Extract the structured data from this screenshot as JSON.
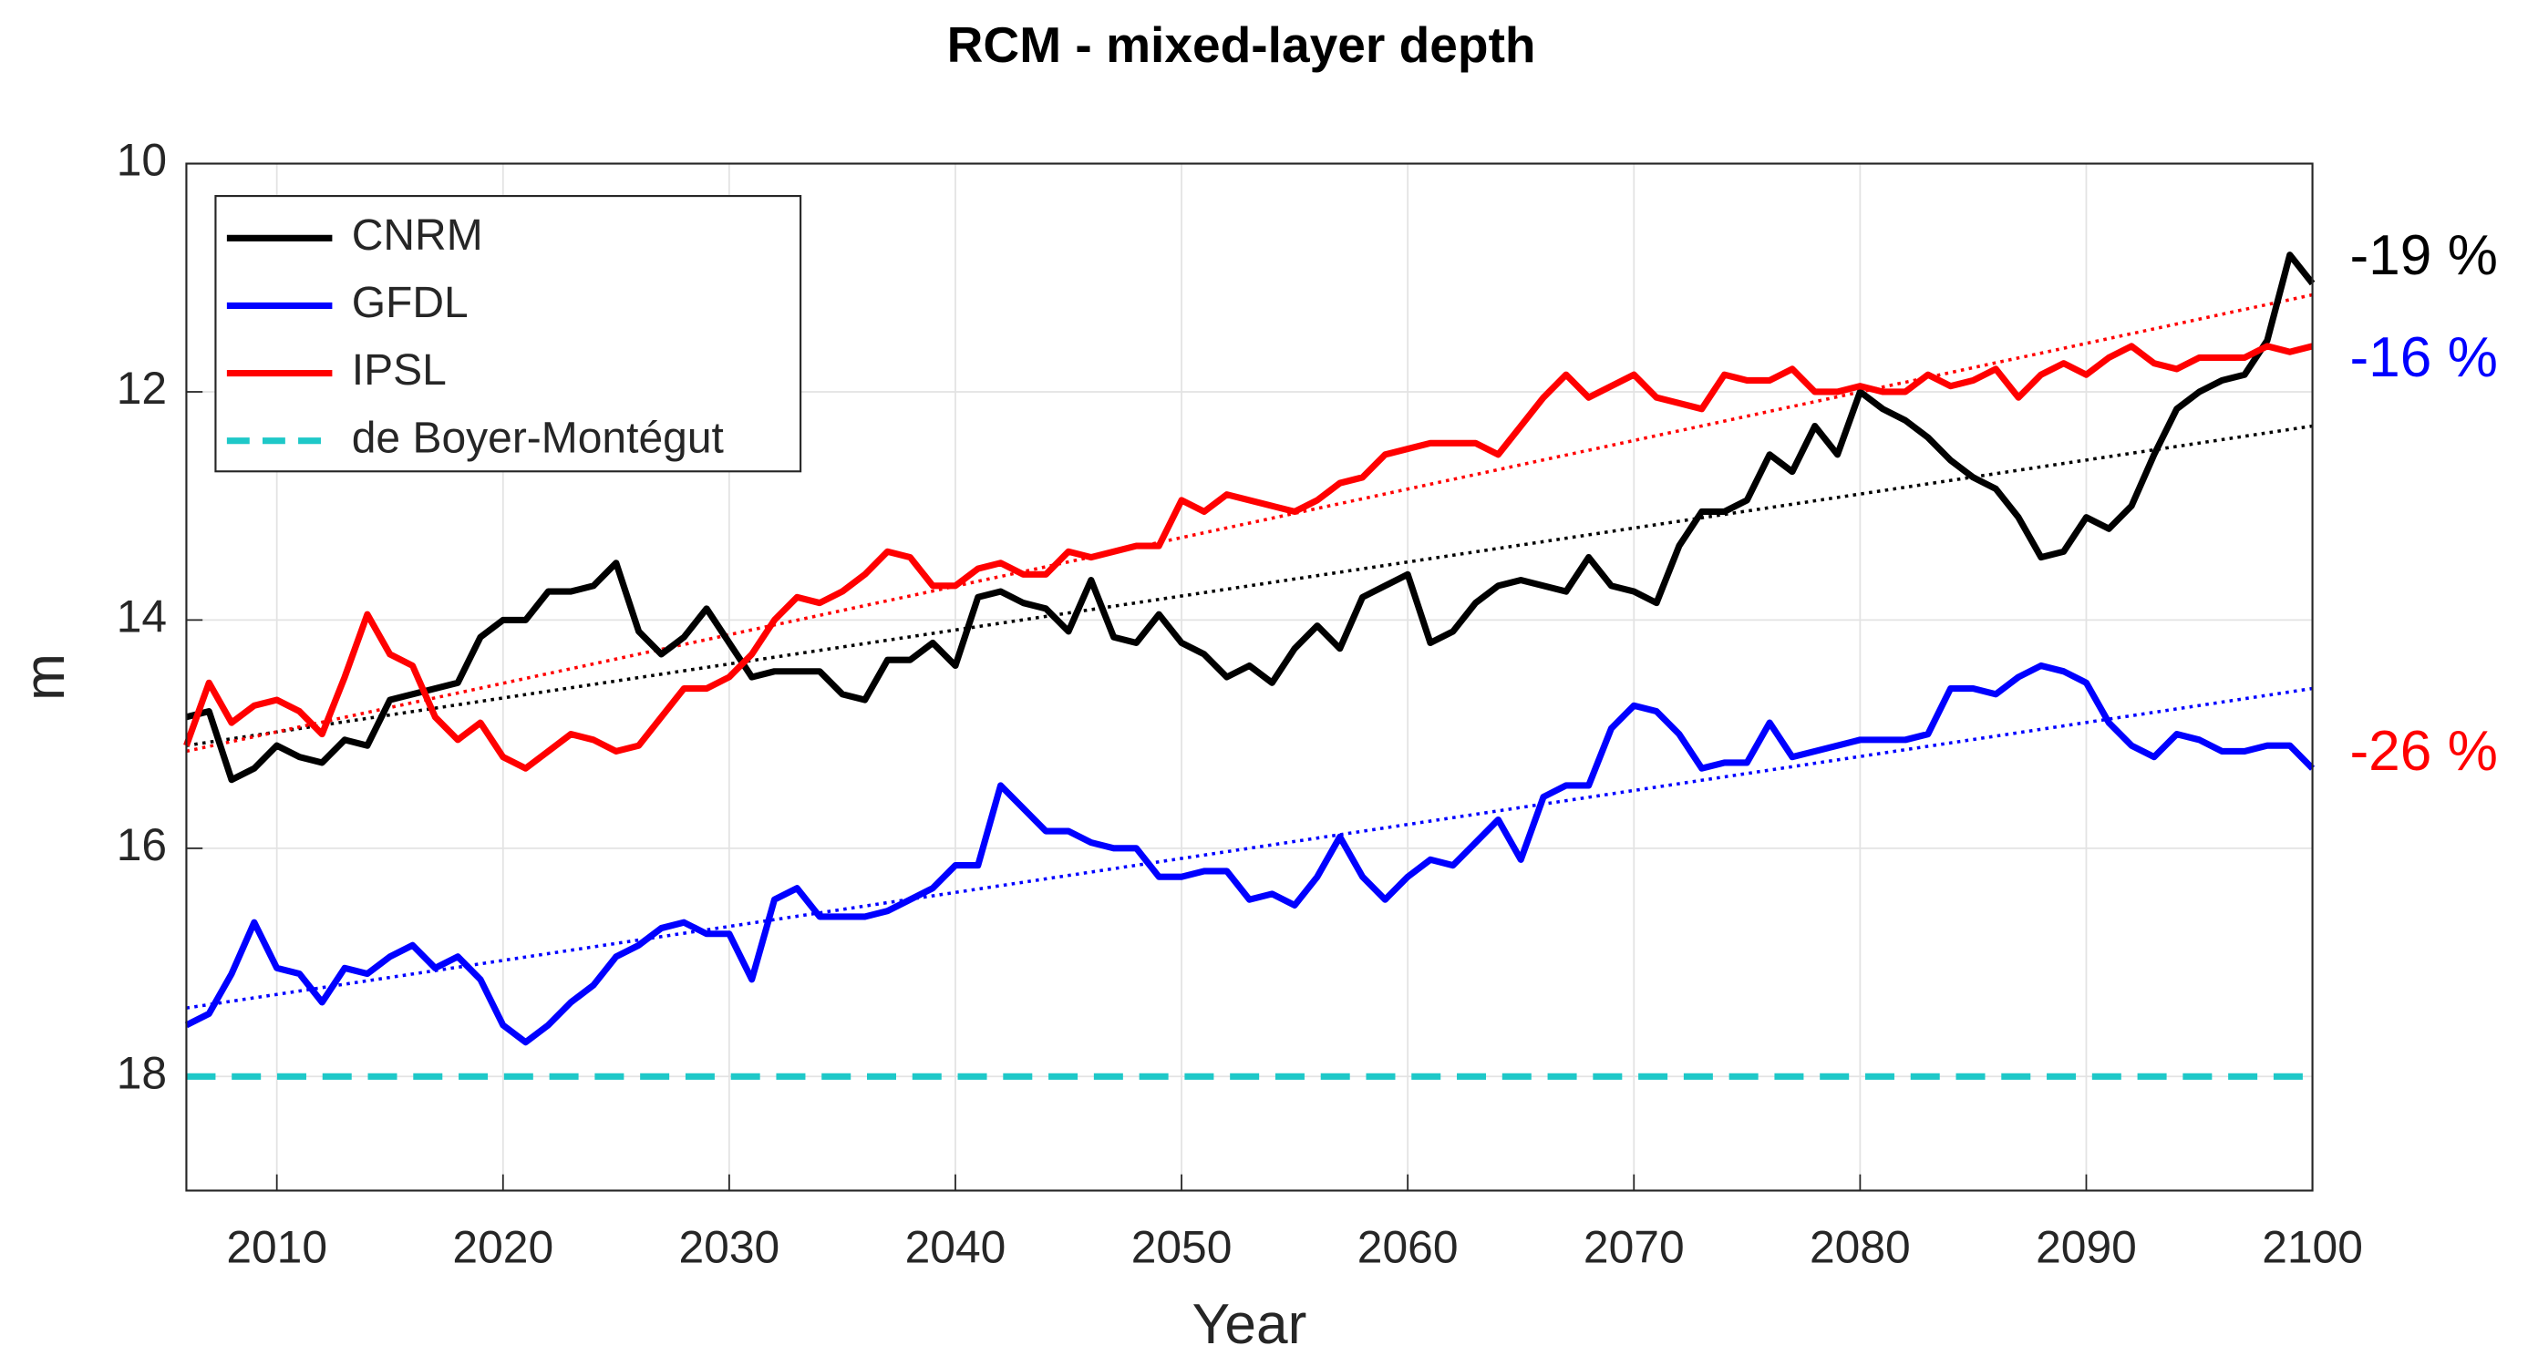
{
  "chart_data": {
    "type": "line",
    "title": "RCM - mixed-layer depth",
    "xlabel": "Year",
    "ylabel": "m",
    "xlim": [
      2006,
      2100
    ],
    "xticks": [
      2010,
      2020,
      2030,
      2040,
      2050,
      2060,
      2070,
      2080,
      2090,
      2100
    ],
    "ylim": [
      10,
      19
    ],
    "yticks": [
      10,
      12,
      14,
      16,
      18
    ],
    "y_reversed": true,
    "grid": true,
    "legend": "upper left",
    "x": [
      2006,
      2007,
      2008,
      2009,
      2010,
      2011,
      2012,
      2013,
      2014,
      2015,
      2016,
      2017,
      2018,
      2019,
      2020,
      2021,
      2022,
      2023,
      2024,
      2025,
      2026,
      2027,
      2028,
      2029,
      2030,
      2031,
      2032,
      2033,
      2034,
      2035,
      2036,
      2037,
      2038,
      2039,
      2040,
      2041,
      2042,
      2043,
      2044,
      2045,
      2046,
      2047,
      2048,
      2049,
      2050,
      2051,
      2052,
      2053,
      2054,
      2055,
      2056,
      2057,
      2058,
      2059,
      2060,
      2061,
      2062,
      2063,
      2064,
      2065,
      2066,
      2067,
      2068,
      2069,
      2070,
      2071,
      2072,
      2073,
      2074,
      2075,
      2076,
      2077,
      2078,
      2079,
      2080,
      2081,
      2082,
      2083,
      2084,
      2085,
      2086,
      2087,
      2088,
      2089,
      2090,
      2091,
      2092,
      2093,
      2094,
      2095,
      2096,
      2097,
      2098,
      2099,
      2100
    ],
    "series": [
      {
        "name": "CNRM",
        "color": "#000000",
        "annotation": "-19 %",
        "trend": [
          15.1,
          12.3
        ],
        "values": [
          14.85,
          14.8,
          15.4,
          15.3,
          15.1,
          15.2,
          15.25,
          15.05,
          15.1,
          14.7,
          14.65,
          14.6,
          14.55,
          14.15,
          14.0,
          14.0,
          13.75,
          13.75,
          13.7,
          13.5,
          14.1,
          14.3,
          14.15,
          13.9,
          14.2,
          14.5,
          14.45,
          14.45,
          14.45,
          14.65,
          14.7,
          14.35,
          14.35,
          14.2,
          14.4,
          13.8,
          13.75,
          13.85,
          13.9,
          14.1,
          13.65,
          14.15,
          14.2,
          13.95,
          14.2,
          14.3,
          14.5,
          14.4,
          14.55,
          14.25,
          14.05,
          14.25,
          13.8,
          13.7,
          13.6,
          14.2,
          14.1,
          13.85,
          13.7,
          13.65,
          13.7,
          13.75,
          13.45,
          13.7,
          13.75,
          13.85,
          13.35,
          13.05,
          13.05,
          12.95,
          12.55,
          12.7,
          12.3,
          12.55,
          12.0,
          12.15,
          12.25,
          12.4,
          12.6,
          12.75,
          12.85,
          13.1,
          13.45,
          13.4,
          13.1,
          13.2,
          13.0,
          12.55,
          12.15,
          12.0,
          11.9,
          11.85,
          11.55,
          10.8,
          11.05
        ]
      },
      {
        "name": "GFDL",
        "color": "#0000ff",
        "annotation": "-16 %",
        "trend": [
          17.4,
          14.6
        ],
        "values": [
          17.55,
          17.45,
          17.1,
          16.65,
          17.05,
          17.1,
          17.35,
          17.05,
          17.1,
          16.95,
          16.85,
          17.05,
          16.95,
          17.15,
          17.55,
          17.7,
          17.55,
          17.35,
          17.2,
          16.95,
          16.85,
          16.7,
          16.65,
          16.75,
          16.75,
          17.15,
          16.45,
          16.35,
          16.6,
          16.6,
          16.6,
          16.55,
          16.45,
          16.35,
          16.15,
          16.15,
          15.45,
          15.65,
          15.85,
          15.85,
          15.95,
          16.0,
          16.0,
          16.25,
          16.25,
          16.2,
          16.2,
          16.45,
          16.4,
          16.5,
          16.25,
          15.9,
          16.25,
          16.45,
          16.25,
          16.1,
          16.15,
          15.95,
          15.75,
          16.1,
          15.55,
          15.45,
          15.45,
          14.95,
          14.75,
          14.8,
          15.0,
          15.3,
          15.25,
          15.25,
          14.9,
          15.2,
          15.15,
          15.1,
          15.05,
          15.05,
          15.05,
          15.0,
          14.6,
          14.6,
          14.65,
          14.5,
          14.4,
          14.45,
          14.55,
          14.9,
          15.1,
          15.2,
          15.0,
          15.05,
          15.15,
          15.15,
          15.1,
          15.1,
          15.3
        ]
      },
      {
        "name": "IPSL",
        "color": "#ff0000",
        "annotation": "-26 %",
        "trend": [
          15.15,
          11.15
        ],
        "values": [
          15.1,
          14.55,
          14.9,
          14.75,
          14.7,
          14.8,
          15.0,
          14.5,
          13.95,
          14.3,
          14.4,
          14.85,
          15.05,
          14.9,
          15.2,
          15.3,
          15.15,
          15.0,
          15.05,
          15.15,
          15.1,
          14.85,
          14.6,
          14.6,
          14.5,
          14.3,
          14.0,
          13.8,
          13.85,
          13.75,
          13.6,
          13.4,
          13.45,
          13.7,
          13.7,
          13.55,
          13.5,
          13.6,
          13.6,
          13.4,
          13.45,
          13.4,
          13.35,
          13.35,
          12.95,
          13.05,
          12.9,
          12.95,
          13.0,
          13.05,
          12.95,
          12.8,
          12.75,
          12.55,
          12.5,
          12.45,
          12.45,
          12.45,
          12.55,
          12.3,
          12.05,
          11.85,
          12.05,
          11.95,
          11.85,
          12.05,
          12.1,
          12.15,
          11.85,
          11.9,
          11.9,
          11.8,
          12.0,
          12.0,
          11.95,
          12.0,
          12.0,
          11.85,
          11.95,
          11.9,
          11.8,
          12.05,
          11.85,
          11.75,
          11.85,
          11.7,
          11.6,
          11.75,
          11.8,
          11.7,
          11.7,
          11.7,
          11.6,
          11.65,
          11.6
        ]
      }
    ],
    "reference_line": {
      "name": "de Boyer-Montégut",
      "color": "#1ec8c8",
      "value": 18
    }
  }
}
